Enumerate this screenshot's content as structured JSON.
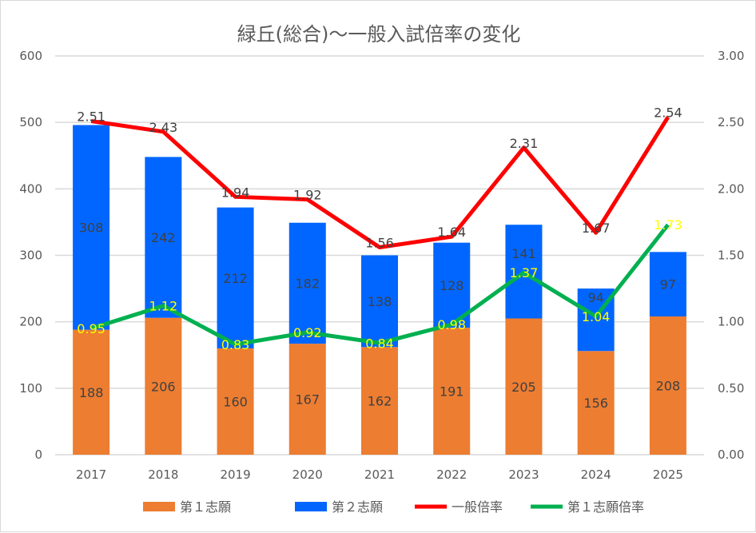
{
  "chart_data": {
    "type": "bar",
    "title": "緑丘(総合)〜一般入試倍率の変化",
    "categories": [
      "2017",
      "2018",
      "2019",
      "2020",
      "2021",
      "2022",
      "2023",
      "2024",
      "2025"
    ],
    "ylim": [
      0,
      600
    ],
    "y2lim": [
      0,
      3
    ],
    "yticks": [
      "0",
      "100",
      "200",
      "300",
      "400",
      "500",
      "600"
    ],
    "y2ticks": [
      "0.00",
      "0.50",
      "1.00",
      "1.50",
      "2.00",
      "2.50",
      "3.00"
    ],
    "legend_position": "bottom",
    "series": [
      {
        "name": "第１志願",
        "kind": "bar",
        "color": "#ed7d31",
        "values": [
          188,
          206,
          160,
          167,
          162,
          191,
          205,
          156,
          208
        ]
      },
      {
        "name": "第２志願",
        "kind": "bar",
        "color": "#0066ff",
        "values": [
          308,
          242,
          212,
          182,
          138,
          128,
          141,
          94,
          97
        ]
      },
      {
        "name": "一般倍率",
        "kind": "line",
        "axis": "right",
        "color": "#ff0000",
        "values": [
          2.51,
          2.43,
          1.94,
          1.92,
          1.56,
          1.64,
          2.31,
          1.67,
          2.54
        ],
        "labels": [
          "2.51",
          "2.43",
          "1.94",
          "1.92",
          "1.56",
          "1.64",
          "2.31",
          "1.67",
          "2.54"
        ]
      },
      {
        "name": "第１志願倍率",
        "kind": "line",
        "axis": "right",
        "color": "#00b050",
        "values": [
          0.95,
          1.12,
          0.83,
          0.92,
          0.84,
          0.98,
          1.37,
          1.04,
          1.73
        ],
        "labels": [
          "0.95",
          "1.12",
          "0.83",
          "0.92",
          "0.84",
          "0.98",
          "1.37",
          "1.04",
          "1.73"
        ]
      }
    ]
  }
}
